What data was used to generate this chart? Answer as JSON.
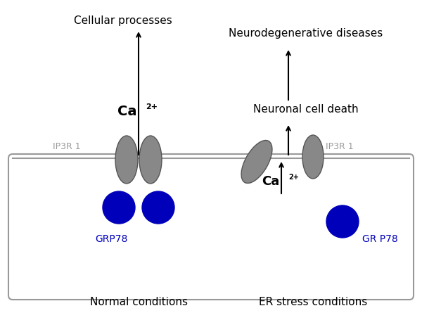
{
  "bg_color": "#ffffff",
  "box_edge_color": "#999999",
  "membrane_color": "#999999",
  "ellipse_color": "#888888",
  "ellipse_edge_color": "#555555",
  "grp78_color": "#0000bb",
  "grp78_label_color": "#0000bb",
  "arrow_color": "#000000",
  "text_color": "#000000",
  "label_ip3r_color": "#999999",
  "title_neurodeg": "Neurodegenerative diseases",
  "title_cellular": "Cellular processes",
  "label_neuronal": "Neuronal cell death",
  "label_normal": "Normal conditions",
  "label_er": "ER stress conditions",
  "label_ip3r1_left": "IP3R 1",
  "label_ip3r1_right": "IP3R 1",
  "label_grp78_left": "GRP78",
  "label_grp78_right": "GR P78",
  "figsize": [
    6.0,
    4.45
  ],
  "dpi": 100
}
